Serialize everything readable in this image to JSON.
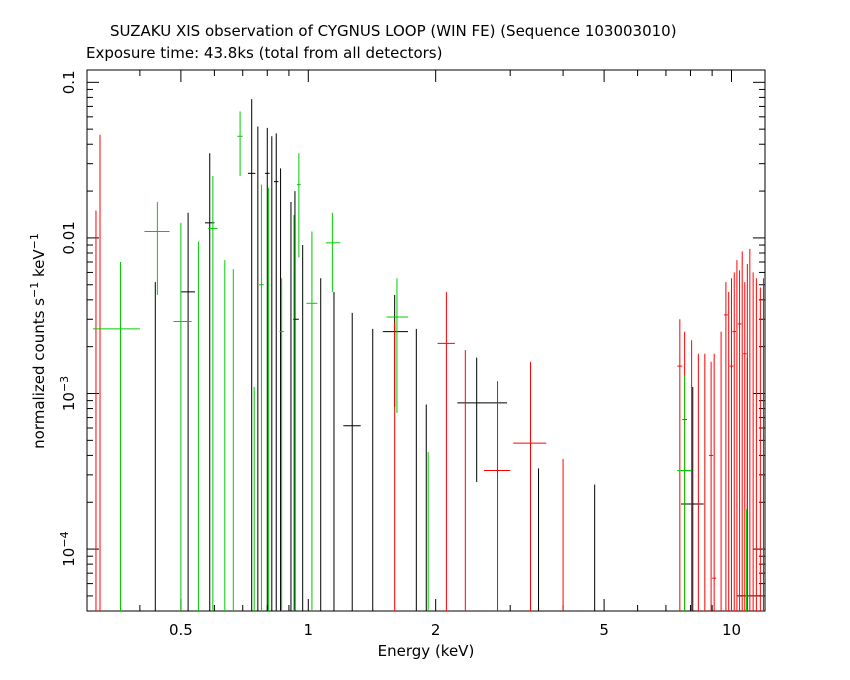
{
  "chart_data": {
    "type": "scatter",
    "title": "SUZAKU XIS observation of CYGNUS LOOP (WIN FE) (Sequence 103003010)",
    "subtitle": "Exposure time: 43.8ks (total from all detectors)",
    "xlabel": "Energy (keV)",
    "ylabel_parts": {
      "main": "normalized counts s",
      "sup1": "−1",
      "mid": " keV",
      "sup2": "−1"
    },
    "x_scale": "log",
    "y_scale": "log",
    "xlim": [
      0.3,
      12
    ],
    "ylim": [
      4e-05,
      0.12
    ],
    "x_ticks": [
      {
        "value": 0.5,
        "label": "0.5"
      },
      {
        "value": 1,
        "label": "1"
      },
      {
        "value": 2,
        "label": "2"
      },
      {
        "value": 5,
        "label": "5"
      },
      {
        "value": 10,
        "label": "10"
      }
    ],
    "y_ticks": [
      {
        "value": 0.1,
        "label": "0.1",
        "exp": ""
      },
      {
        "value": 0.01,
        "label": "0.01",
        "exp": ""
      },
      {
        "value": 0.001,
        "label": "10",
        "exp": "−3"
      },
      {
        "value": 0.0001,
        "label": "10",
        "exp": "−4"
      }
    ],
    "series": [
      {
        "color": "#000000",
        "points": [
          {
            "x": 0.435,
            "xlo": 0.435,
            "xhi": 0.435,
            "y": 4e-05,
            "ylo": 4e-05,
            "yhi": 0.0052
          },
          {
            "x": 0.52,
            "xlo": 0.5,
            "xhi": 0.54,
            "y": 0.0045,
            "ylo": 4e-05,
            "yhi": 0.0145
          },
          {
            "x": 0.585,
            "xlo": 0.57,
            "xhi": 0.6,
            "y": 0.0125,
            "ylo": 4e-05,
            "yhi": 0.035
          },
          {
            "x": 0.735,
            "xlo": 0.72,
            "xhi": 0.75,
            "y": 0.026,
            "ylo": 4e-05,
            "yhi": 0.078
          },
          {
            "x": 0.76,
            "xlo": 0.76,
            "xhi": 0.76,
            "y": 4e-05,
            "ylo": 4e-05,
            "yhi": 0.052
          },
          {
            "x": 0.8,
            "xlo": 0.79,
            "xhi": 0.81,
            "y": 0.026,
            "ylo": 4e-05,
            "yhi": 0.051
          },
          {
            "x": 0.82,
            "xlo": 0.82,
            "xhi": 0.82,
            "y": 4e-05,
            "ylo": 4e-05,
            "yhi": 0.045
          },
          {
            "x": 0.84,
            "xlo": 0.83,
            "xhi": 0.85,
            "y": 0.023,
            "ylo": 4e-05,
            "yhi": 0.047
          },
          {
            "x": 0.86,
            "xlo": 0.86,
            "xhi": 0.86,
            "y": 4e-05,
            "ylo": 4e-05,
            "yhi": 0.028
          },
          {
            "x": 0.91,
            "xlo": 0.91,
            "xhi": 0.91,
            "y": 4e-05,
            "ylo": 4e-05,
            "yhi": 0.017
          },
          {
            "x": 0.93,
            "xlo": 0.92,
            "xhi": 0.95,
            "y": 0.003,
            "ylo": 4e-05,
            "yhi": 0.02
          },
          {
            "x": 0.97,
            "xlo": 0.97,
            "xhi": 0.97,
            "y": 4e-05,
            "ylo": 4e-05,
            "yhi": 0.009
          },
          {
            "x": 1.07,
            "xlo": 1.07,
            "xhi": 1.07,
            "y": 4e-05,
            "ylo": 4e-05,
            "yhi": 0.0055
          },
          {
            "x": 1.15,
            "xlo": 1.15,
            "xhi": 1.15,
            "y": 4e-05,
            "ylo": 4e-05,
            "yhi": 0.0045
          },
          {
            "x": 1.27,
            "xlo": 1.21,
            "xhi": 1.33,
            "y": 0.00062,
            "ylo": 4e-05,
            "yhi": 0.0033
          },
          {
            "x": 1.42,
            "xlo": 1.42,
            "xhi": 1.42,
            "y": 4e-05,
            "ylo": 4e-05,
            "yhi": 0.0026
          },
          {
            "x": 1.6,
            "xlo": 1.5,
            "xhi": 1.72,
            "y": 0.0025,
            "ylo": 0.00082,
            "yhi": 0.0043
          },
          {
            "x": 1.8,
            "xlo": 1.8,
            "xhi": 1.8,
            "y": 4e-05,
            "ylo": 4e-05,
            "yhi": 0.0026
          },
          {
            "x": 1.9,
            "xlo": 1.9,
            "xhi": 1.9,
            "y": 4e-05,
            "ylo": 4e-05,
            "yhi": 0.00085
          },
          {
            "x": 2.5,
            "xlo": 2.25,
            "xhi": 2.95,
            "y": 0.00087,
            "ylo": 0.00027,
            "yhi": 0.0017
          },
          {
            "x": 3.5,
            "xlo": 3.5,
            "xhi": 3.5,
            "y": 4e-05,
            "ylo": 4e-05,
            "yhi": 0.00033
          },
          {
            "x": 4.75,
            "xlo": 4.75,
            "xhi": 4.75,
            "y": 4e-05,
            "ylo": 4e-05,
            "yhi": 0.00026
          },
          {
            "x": 8.1,
            "xlo": 7.6,
            "xhi": 8.6,
            "y": 0.000195,
            "ylo": 4e-05,
            "yhi": 0.0011
          },
          {
            "x": 10.9,
            "xlo": 10.3,
            "xhi": 11.7,
            "y": 5e-05,
            "ylo": 4e-05,
            "yhi": 0.0017
          }
        ]
      },
      {
        "color": "#ff0000",
        "points": [
          {
            "x": 0.315,
            "xlo": 0.315,
            "xhi": 0.315,
            "y": 4e-05,
            "ylo": 4e-05,
            "yhi": 0.015
          },
          {
            "x": 0.322,
            "xlo": 0.322,
            "xhi": 0.322,
            "y": 4e-05,
            "ylo": 4e-05,
            "yhi": 0.046
          },
          {
            "x": 1.6,
            "xlo": 1.6,
            "xhi": 1.6,
            "y": 4e-05,
            "ylo": 4e-05,
            "yhi": 0.0029
          },
          {
            "x": 2.12,
            "xlo": 2.02,
            "xhi": 2.22,
            "y": 0.0021,
            "ylo": 4e-05,
            "yhi": 0.0045
          },
          {
            "x": 2.35,
            "xlo": 2.35,
            "xhi": 2.35,
            "y": 4e-05,
            "ylo": 4e-05,
            "yhi": 0.0019
          },
          {
            "x": 2.8,
            "xlo": 2.6,
            "xhi": 3.0,
            "y": 0.00032,
            "ylo": 4e-05,
            "yhi": 0.0012
          },
          {
            "x": 3.35,
            "xlo": 3.05,
            "xhi": 3.65,
            "y": 0.00048,
            "ylo": 4e-05,
            "yhi": 0.0016
          },
          {
            "x": 4.0,
            "xlo": 4.0,
            "xhi": 4.0,
            "y": 4e-05,
            "ylo": 4e-05,
            "yhi": 0.00038
          },
          {
            "x": 7.55,
            "xlo": 7.45,
            "xhi": 7.65,
            "y": 0.0015,
            "ylo": 4e-05,
            "yhi": 0.003
          },
          {
            "x": 7.75,
            "xlo": 7.65,
            "xhi": 7.85,
            "y": 0.00068,
            "ylo": 4e-05,
            "yhi": 0.0025
          },
          {
            "x": 8.05,
            "xlo": 8.05,
            "xhi": 8.05,
            "y": 4e-05,
            "ylo": 4e-05,
            "yhi": 0.0022
          },
          {
            "x": 8.35,
            "xlo": 8.35,
            "xhi": 8.35,
            "y": 4e-05,
            "ylo": 4e-05,
            "yhi": 0.0018
          },
          {
            "x": 8.65,
            "xlo": 8.65,
            "xhi": 8.65,
            "y": 4e-05,
            "ylo": 4e-05,
            "yhi": 0.0018
          },
          {
            "x": 8.95,
            "xlo": 8.85,
            "xhi": 9.05,
            "y": 0.0004,
            "ylo": 4e-05,
            "yhi": 0.0016
          },
          {
            "x": 9.1,
            "xlo": 9.0,
            "xhi": 9.2,
            "y": 6.5e-05,
            "ylo": 4e-05,
            "yhi": 0.0018
          },
          {
            "x": 9.45,
            "xlo": 9.45,
            "xhi": 9.45,
            "y": 4e-05,
            "ylo": 4e-05,
            "yhi": 0.0025
          },
          {
            "x": 9.7,
            "xlo": 9.6,
            "xhi": 9.8,
            "y": 0.0032,
            "ylo": 4e-05,
            "yhi": 0.0052
          },
          {
            "x": 9.85,
            "xlo": 9.85,
            "xhi": 9.85,
            "y": 4e-05,
            "ylo": 4e-05,
            "yhi": 0.0045
          },
          {
            "x": 10.0,
            "xlo": 9.9,
            "xhi": 10.1,
            "y": 0.0015,
            "ylo": 4e-05,
            "yhi": 0.0055
          },
          {
            "x": 10.15,
            "xlo": 10.05,
            "xhi": 10.25,
            "y": 0.0025,
            "ylo": 4e-05,
            "yhi": 0.006
          },
          {
            "x": 10.3,
            "xlo": 10.3,
            "xhi": 10.3,
            "y": 4e-05,
            "ylo": 4e-05,
            "yhi": 0.0072
          },
          {
            "x": 10.45,
            "xlo": 10.35,
            "xhi": 10.55,
            "y": 0.0028,
            "ylo": 4e-05,
            "yhi": 0.0062
          },
          {
            "x": 10.6,
            "xlo": 10.6,
            "xhi": 10.6,
            "y": 4e-05,
            "ylo": 4e-05,
            "yhi": 0.0082
          },
          {
            "x": 10.75,
            "xlo": 10.65,
            "xhi": 10.85,
            "y": 0.0018,
            "ylo": 4e-05,
            "yhi": 0.0052
          },
          {
            "x": 10.9,
            "xlo": 10.9,
            "xhi": 10.9,
            "y": 4e-05,
            "ylo": 4e-05,
            "yhi": 0.0068
          },
          {
            "x": 11.05,
            "xlo": 11.05,
            "xhi": 11.05,
            "y": 4e-05,
            "ylo": 4e-05,
            "yhi": 0.0085
          },
          {
            "x": 11.25,
            "xlo": 11.25,
            "xhi": 11.25,
            "y": 4e-05,
            "ylo": 4e-05,
            "yhi": 0.006
          },
          {
            "x": 11.45,
            "xlo": 11.45,
            "xhi": 11.45,
            "y": 4e-05,
            "ylo": 4e-05,
            "yhi": 0.0055
          },
          {
            "x": 11.7,
            "xlo": 11.7,
            "xhi": 11.7,
            "y": 4e-05,
            "ylo": 4e-05,
            "yhi": 0.0048
          },
          {
            "x": 11.9,
            "xlo": 11.9,
            "xhi": 11.9,
            "y": 4e-05,
            "ylo": 4e-05,
            "yhi": 0.0055
          }
        ]
      },
      {
        "color": "#00cc00",
        "points": [
          {
            "x": 0.36,
            "xlo": 0.31,
            "xhi": 0.4,
            "y": 0.0026,
            "ylo": 4e-05,
            "yhi": 0.007
          },
          {
            "x": 0.44,
            "xlo": 0.41,
            "xhi": 0.47,
            "y": 0.011,
            "ylo": 0.0043,
            "yhi": 0.017
          },
          {
            "x": 0.5,
            "xlo": 0.48,
            "xhi": 0.53,
            "y": 0.0029,
            "ylo": 4e-05,
            "yhi": 0.0125
          },
          {
            "x": 0.55,
            "xlo": 0.55,
            "xhi": 0.55,
            "y": 4e-05,
            "ylo": 4e-05,
            "yhi": 0.0095
          },
          {
            "x": 0.595,
            "xlo": 0.58,
            "xhi": 0.61,
            "y": 0.0115,
            "ylo": 4e-05,
            "yhi": 0.025
          },
          {
            "x": 0.635,
            "xlo": 0.635,
            "xhi": 0.635,
            "y": 4e-05,
            "ylo": 4e-05,
            "yhi": 0.0072
          },
          {
            "x": 0.665,
            "xlo": 0.665,
            "xhi": 0.665,
            "y": 4e-05,
            "ylo": 4e-05,
            "yhi": 0.0063
          },
          {
            "x": 0.69,
            "xlo": 0.68,
            "xhi": 0.7,
            "y": 0.045,
            "ylo": 0.025,
            "yhi": 0.065
          },
          {
            "x": 0.745,
            "xlo": 0.745,
            "xhi": 0.745,
            "y": 4e-05,
            "ylo": 4e-05,
            "yhi": 0.0011
          },
          {
            "x": 0.775,
            "xlo": 0.765,
            "xhi": 0.785,
            "y": 0.005,
            "ylo": 4e-05,
            "yhi": 0.022
          },
          {
            "x": 0.805,
            "xlo": 0.805,
            "xhi": 0.805,
            "y": 4e-05,
            "ylo": 4e-05,
            "yhi": 0.021
          },
          {
            "x": 0.865,
            "xlo": 0.855,
            "xhi": 0.875,
            "y": 0.0025,
            "ylo": 4e-05,
            "yhi": 0.0055
          },
          {
            "x": 0.925,
            "xlo": 0.925,
            "xhi": 0.925,
            "y": 4e-05,
            "ylo": 4e-05,
            "yhi": 0.014
          },
          {
            "x": 0.95,
            "xlo": 0.94,
            "xhi": 0.96,
            "y": 0.022,
            "ylo": 0.0075,
            "yhi": 0.035
          },
          {
            "x": 1.02,
            "xlo": 0.99,
            "xhi": 1.05,
            "y": 0.0038,
            "ylo": 4e-05,
            "yhi": 0.011
          },
          {
            "x": 1.14,
            "xlo": 1.1,
            "xhi": 1.19,
            "y": 0.0093,
            "ylo": 0.0045,
            "yhi": 0.0145
          },
          {
            "x": 1.62,
            "xlo": 1.53,
            "xhi": 1.72,
            "y": 0.0031,
            "ylo": 0.00075,
            "yhi": 0.0055
          },
          {
            "x": 1.92,
            "xlo": 1.92,
            "xhi": 1.92,
            "y": 4e-05,
            "ylo": 4e-05,
            "yhi": 0.00042
          },
          {
            "x": 7.75,
            "xlo": 7.45,
            "xhi": 8.05,
            "y": 0.00032,
            "ylo": 4e-05,
            "yhi": 0.0013
          },
          {
            "x": 10.85,
            "xlo": 10.85,
            "xhi": 10.85,
            "y": 4e-05,
            "ylo": 4e-05,
            "yhi": 0.00018
          }
        ]
      }
    ]
  }
}
